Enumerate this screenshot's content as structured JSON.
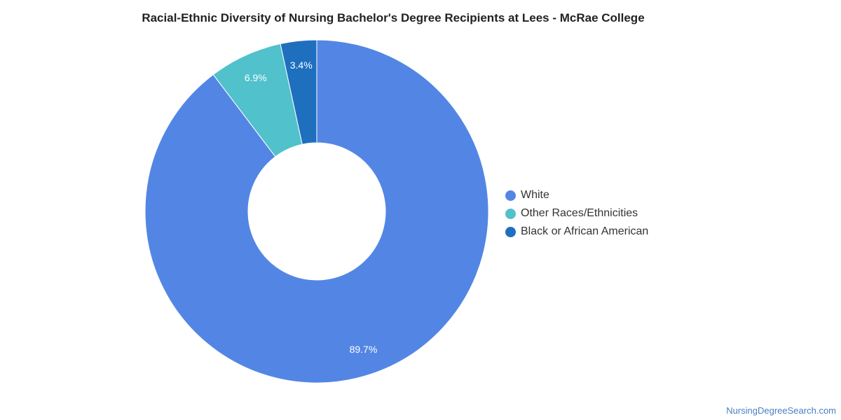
{
  "chart_data": {
    "type": "pie",
    "title": "Racial-Ethnic Diversity of Nursing Bachelor's Degree Recipients at Lees - McRae College",
    "donut": true,
    "legend_position": "right",
    "slices": [
      {
        "label": "White",
        "value": 89.7,
        "display": "89.7%",
        "color": "#5386e4"
      },
      {
        "label": "Other Races/Ethnicities",
        "value": 6.9,
        "display": "6.9%",
        "color": "#51c1cb"
      },
      {
        "label": "Black or African American",
        "value": 3.4,
        "display": "3.4%",
        "color": "#1f6fbf"
      }
    ]
  },
  "source_link": "NursingDegreeSearch.com"
}
